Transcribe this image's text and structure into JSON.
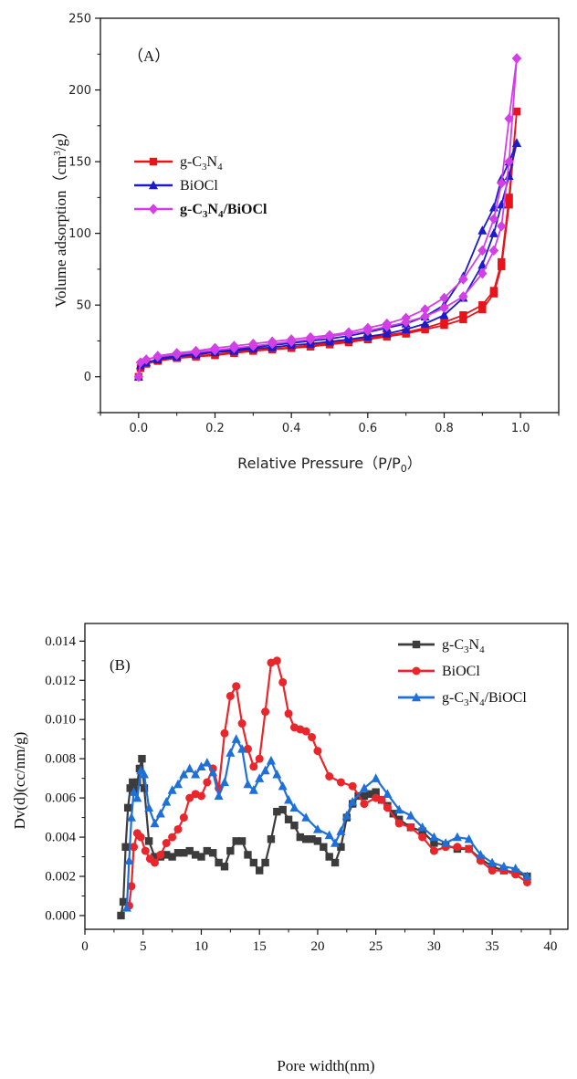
{
  "chart_data": [
    {
      "type": "line",
      "panel_label": "（A）",
      "xlabel": "Relative Pressure（P/P",
      "xlabel_sub": "0",
      "xlabel_tail": "）",
      "ylabel": "Volume adsorption（cm",
      "ylabel_sup": "3",
      "ylabel_tail": "/g）",
      "xlim": [
        -0.1,
        1.1
      ],
      "ylim": [
        -25,
        250
      ],
      "xticks": [
        "0.0",
        "0.2",
        "0.4",
        "0.6",
        "0.8",
        "1.0"
      ],
      "yticks": [
        "0",
        "50",
        "100",
        "150",
        "200",
        "250"
      ],
      "legend_position": "middle-left",
      "series": [
        {
          "name": "g-C3N4",
          "legend_parts": [
            "g-C",
            "3",
            "N",
            "4",
            ""
          ],
          "legend_bold": false,
          "color": "#e8141b",
          "marker": "square",
          "x": [
            0.0,
            0.005,
            0.02,
            0.05,
            0.1,
            0.15,
            0.2,
            0.25,
            0.3,
            0.35,
            0.4,
            0.45,
            0.5,
            0.55,
            0.6,
            0.65,
            0.7,
            0.75,
            0.8,
            0.85,
            0.9,
            0.93,
            0.95,
            0.97,
            0.99,
            0.99,
            0.97,
            0.95,
            0.93,
            0.9,
            0.85,
            0.8,
            0.75,
            0.7,
            0.65,
            0.6,
            0.55,
            0.5,
            0.45,
            0.4,
            0.35,
            0.3,
            0.25,
            0.2,
            0.15,
            0.1,
            0.05
          ],
          "y": [
            0,
            6,
            9,
            11,
            13,
            14,
            15,
            16.5,
            18,
            19,
            20,
            21,
            22.5,
            24,
            26,
            28,
            30,
            33,
            36,
            40,
            47,
            58,
            77,
            120,
            185,
            185,
            125,
            80,
            60,
            50,
            43,
            38,
            34,
            31,
            29,
            27,
            25,
            23.5,
            22,
            20.5,
            19.5,
            18.5,
            17,
            15.5,
            14.5,
            13,
            11.5
          ]
        },
        {
          "name": "BiOCl",
          "legend_parts": [
            "BiOCl"
          ],
          "legend_bold": false,
          "color": "#1b1bc8",
          "marker": "triangle",
          "x": [
            0.0,
            0.005,
            0.02,
            0.05,
            0.1,
            0.15,
            0.2,
            0.25,
            0.3,
            0.35,
            0.4,
            0.45,
            0.5,
            0.55,
            0.6,
            0.65,
            0.7,
            0.75,
            0.8,
            0.85,
            0.9,
            0.93,
            0.95,
            0.97,
            0.99,
            0.99,
            0.97,
            0.95,
            0.93,
            0.9,
            0.85,
            0.8,
            0.75,
            0.7,
            0.65,
            0.6,
            0.55,
            0.5,
            0.45,
            0.4,
            0.35,
            0.3,
            0.25,
            0.2,
            0.15,
            0.1,
            0.05
          ],
          "y": [
            0,
            8,
            10,
            12,
            14,
            15.5,
            17,
            18,
            19.5,
            20.5,
            22,
            23,
            24.5,
            26,
            28,
            30,
            33,
            37,
            43,
            55,
            78,
            100,
            120,
            140,
            163,
            163,
            150,
            138,
            118,
            102,
            70,
            50,
            42,
            37,
            34,
            31,
            28.5,
            26.5,
            25,
            23.5,
            22,
            20.5,
            19,
            17.5,
            16,
            14.5,
            13
          ]
        },
        {
          "name": "g-C3N4/BiOCl",
          "legend_parts": [
            "g-C",
            "3",
            "N",
            "4",
            "/BiOCl"
          ],
          "legend_bold": true,
          "color": "#d23fe6",
          "marker": "diamond",
          "x": [
            0.0,
            0.005,
            0.02,
            0.05,
            0.1,
            0.15,
            0.2,
            0.25,
            0.3,
            0.35,
            0.4,
            0.45,
            0.5,
            0.55,
            0.6,
            0.65,
            0.7,
            0.75,
            0.8,
            0.85,
            0.9,
            0.93,
            0.95,
            0.97,
            0.99,
            0.99,
            0.97,
            0.95,
            0.93,
            0.9,
            0.85,
            0.8,
            0.75,
            0.7,
            0.65,
            0.6,
            0.55,
            0.5,
            0.45,
            0.4,
            0.35,
            0.3,
            0.25,
            0.2,
            0.15,
            0.1,
            0.05
          ],
          "y": [
            0,
            10,
            12,
            14,
            15.5,
            17,
            18.5,
            20,
            21.5,
            23,
            24.5,
            26,
            28,
            30,
            32,
            35,
            38,
            42,
            48,
            56,
            72,
            88,
            105,
            150,
            222,
            222,
            180,
            135,
            110,
            88,
            68,
            55,
            47,
            41,
            37,
            34,
            31,
            29,
            27.5,
            26,
            24.5,
            23,
            21.5,
            20,
            18,
            16.5,
            14.5
          ]
        }
      ]
    },
    {
      "type": "line",
      "panel_label": "(B)",
      "xlabel": "Pore width(nm)",
      "ylabel": "Dv(d)(cc/nm/g)",
      "xlim": [
        0,
        41.5
      ],
      "ylim": [
        -0.0007,
        0.0149
      ],
      "xticks": [
        "0",
        "5",
        "10",
        "15",
        "20",
        "25",
        "30",
        "35",
        "40"
      ],
      "yticks": [
        "0.000",
        "0.002",
        "0.004",
        "0.006",
        "0.008",
        "0.010",
        "0.012",
        "0.014"
      ],
      "legend_position": "top-right",
      "series": [
        {
          "name": "g-C3N4",
          "legend_parts": [
            "g-C",
            "3",
            "N",
            "4",
            ""
          ],
          "legend_bold": false,
          "color": "#3c3c3c",
          "marker": "square",
          "x": [
            3.1,
            3.3,
            3.5,
            3.7,
            3.9,
            4.1,
            4.3,
            4.5,
            4.7,
            4.9,
            5.1,
            5.5,
            6.0,
            6.5,
            7.0,
            7.5,
            8.0,
            8.5,
            9.0,
            9.5,
            10.0,
            10.5,
            11.0,
            11.5,
            12.0,
            12.5,
            13.0,
            13.5,
            14.0,
            14.5,
            15.0,
            15.5,
            16.0,
            16.5,
            17.0,
            17.5,
            18.0,
            18.5,
            19.0,
            19.5,
            20.0,
            20.5,
            21.0,
            21.5,
            22.0,
            22.5,
            23.0,
            23.5,
            24.0,
            24.5,
            25.0,
            25.5,
            26.0,
            26.5,
            27.0,
            28.0,
            29.0,
            30.0,
            31.0,
            32.0,
            33.0,
            34.0,
            35.0,
            36.0,
            37.0,
            38.0
          ],
          "y": [
            0.0,
            0.0007,
            0.0035,
            0.0055,
            0.0065,
            0.0068,
            0.0064,
            0.0068,
            0.0075,
            0.008,
            0.0065,
            0.0038,
            0.003,
            0.003,
            0.0031,
            0.003,
            0.0032,
            0.0032,
            0.0033,
            0.0031,
            0.003,
            0.0033,
            0.0032,
            0.0027,
            0.0025,
            0.0033,
            0.0038,
            0.0038,
            0.0031,
            0.0027,
            0.0023,
            0.0027,
            0.0039,
            0.0053,
            0.0054,
            0.0049,
            0.0046,
            0.004,
            0.0039,
            0.0039,
            0.0038,
            0.0035,
            0.003,
            0.0027,
            0.0035,
            0.005,
            0.0057,
            0.0061,
            0.0061,
            0.0062,
            0.0063,
            0.0059,
            0.0056,
            0.0052,
            0.0049,
            0.0045,
            0.0043,
            0.0037,
            0.0036,
            0.0034,
            0.0034,
            0.0029,
            0.0025,
            0.0023,
            0.0022,
            0.002
          ]
        },
        {
          "name": "BiOCl",
          "legend_parts": [
            "BiOCl"
          ],
          "legend_bold": false,
          "color": "#e8262b",
          "marker": "circle",
          "x": [
            3.8,
            4.0,
            4.2,
            4.5,
            4.8,
            5.2,
            5.6,
            6.0,
            6.5,
            7.0,
            7.5,
            8.0,
            8.5,
            9.0,
            9.5,
            10.0,
            10.5,
            11.0,
            11.5,
            12.0,
            12.5,
            13.0,
            13.5,
            14.0,
            14.5,
            15.0,
            15.5,
            16.0,
            16.5,
            17.0,
            17.5,
            18.0,
            18.5,
            19.0,
            19.5,
            20.0,
            21.0,
            22.0,
            23.0,
            24.0,
            25.0,
            25.5,
            26.0,
            27.0,
            28.0,
            29.0,
            30.0,
            31.0,
            32.0,
            33.0,
            34.0,
            35.0,
            36.0,
            37.0,
            38.0
          ],
          "y": [
            0.0005,
            0.0015,
            0.0035,
            0.0042,
            0.004,
            0.0033,
            0.0029,
            0.0027,
            0.0031,
            0.0037,
            0.004,
            0.0044,
            0.005,
            0.006,
            0.0062,
            0.0061,
            0.0068,
            0.0075,
            0.0065,
            0.0093,
            0.0112,
            0.0117,
            0.0098,
            0.0085,
            0.0076,
            0.008,
            0.0104,
            0.0129,
            0.013,
            0.0119,
            0.0103,
            0.0096,
            0.0095,
            0.0094,
            0.0091,
            0.0084,
            0.0071,
            0.0068,
            0.0066,
            0.0057,
            0.006,
            0.0059,
            0.0055,
            0.0047,
            0.0045,
            0.004,
            0.0033,
            0.0035,
            0.0035,
            0.0034,
            0.0028,
            0.0023,
            0.0023,
            0.0021,
            0.0017
          ]
        },
        {
          "name": "g-C3N4/BiOCl",
          "legend_parts": [
            "g-C",
            "3",
            "N",
            "4",
            "/BiOCl"
          ],
          "legend_bold": false,
          "color": "#1f6fd8",
          "marker": "triangle",
          "x": [
            3.6,
            3.8,
            4.0,
            4.2,
            4.5,
            4.8,
            5.1,
            5.5,
            6.0,
            6.5,
            7.0,
            7.5,
            8.0,
            8.5,
            9.0,
            9.5,
            10.0,
            10.5,
            11.0,
            11.5,
            12.0,
            12.5,
            13.0,
            13.5,
            14.0,
            14.5,
            15.0,
            15.5,
            16.0,
            16.5,
            17.0,
            17.5,
            18.0,
            19.0,
            20.0,
            21.0,
            21.5,
            22.0,
            22.5,
            23.0,
            24.0,
            25.0,
            26.0,
            27.0,
            28.0,
            29.0,
            30.0,
            31.0,
            32.0,
            33.0,
            34.0,
            35.0,
            36.0,
            37.0,
            38.0
          ],
          "y": [
            0.0004,
            0.0028,
            0.005,
            0.0063,
            0.006,
            0.0074,
            0.0072,
            0.0055,
            0.0047,
            0.0052,
            0.0058,
            0.0064,
            0.0067,
            0.0072,
            0.0075,
            0.0072,
            0.0076,
            0.0078,
            0.0073,
            0.0061,
            0.0068,
            0.0083,
            0.009,
            0.0085,
            0.0067,
            0.0064,
            0.007,
            0.0074,
            0.0079,
            0.0072,
            0.0066,
            0.0059,
            0.0055,
            0.005,
            0.0044,
            0.0041,
            0.0037,
            0.0043,
            0.0051,
            0.0058,
            0.0065,
            0.007,
            0.0062,
            0.0054,
            0.0051,
            0.0045,
            0.004,
            0.0037,
            0.004,
            0.0039,
            0.0031,
            0.0027,
            0.0025,
            0.0024,
            0.002
          ]
        }
      ]
    }
  ]
}
